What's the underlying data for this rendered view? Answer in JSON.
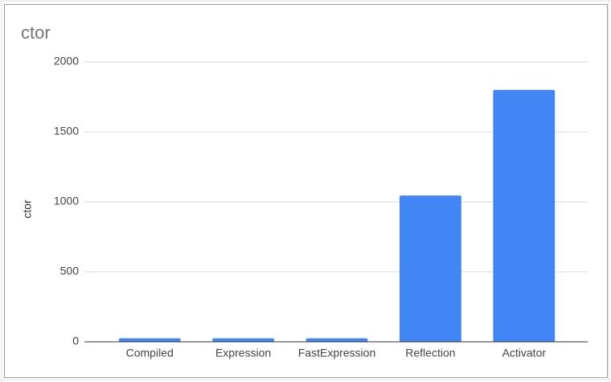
{
  "chart_data": {
    "type": "bar",
    "title": "ctor",
    "y_label": "ctor",
    "categories": [
      "Compiled",
      "Expression",
      "FastExpression",
      "Reflection",
      "Activator"
    ],
    "values": [
      25,
      25,
      25,
      1045,
      1800
    ],
    "color": "#4285f4",
    "ylim": [
      0,
      2000
    ],
    "yticks": [
      0,
      500,
      1000,
      1500,
      2000
    ],
    "grid": true
  }
}
